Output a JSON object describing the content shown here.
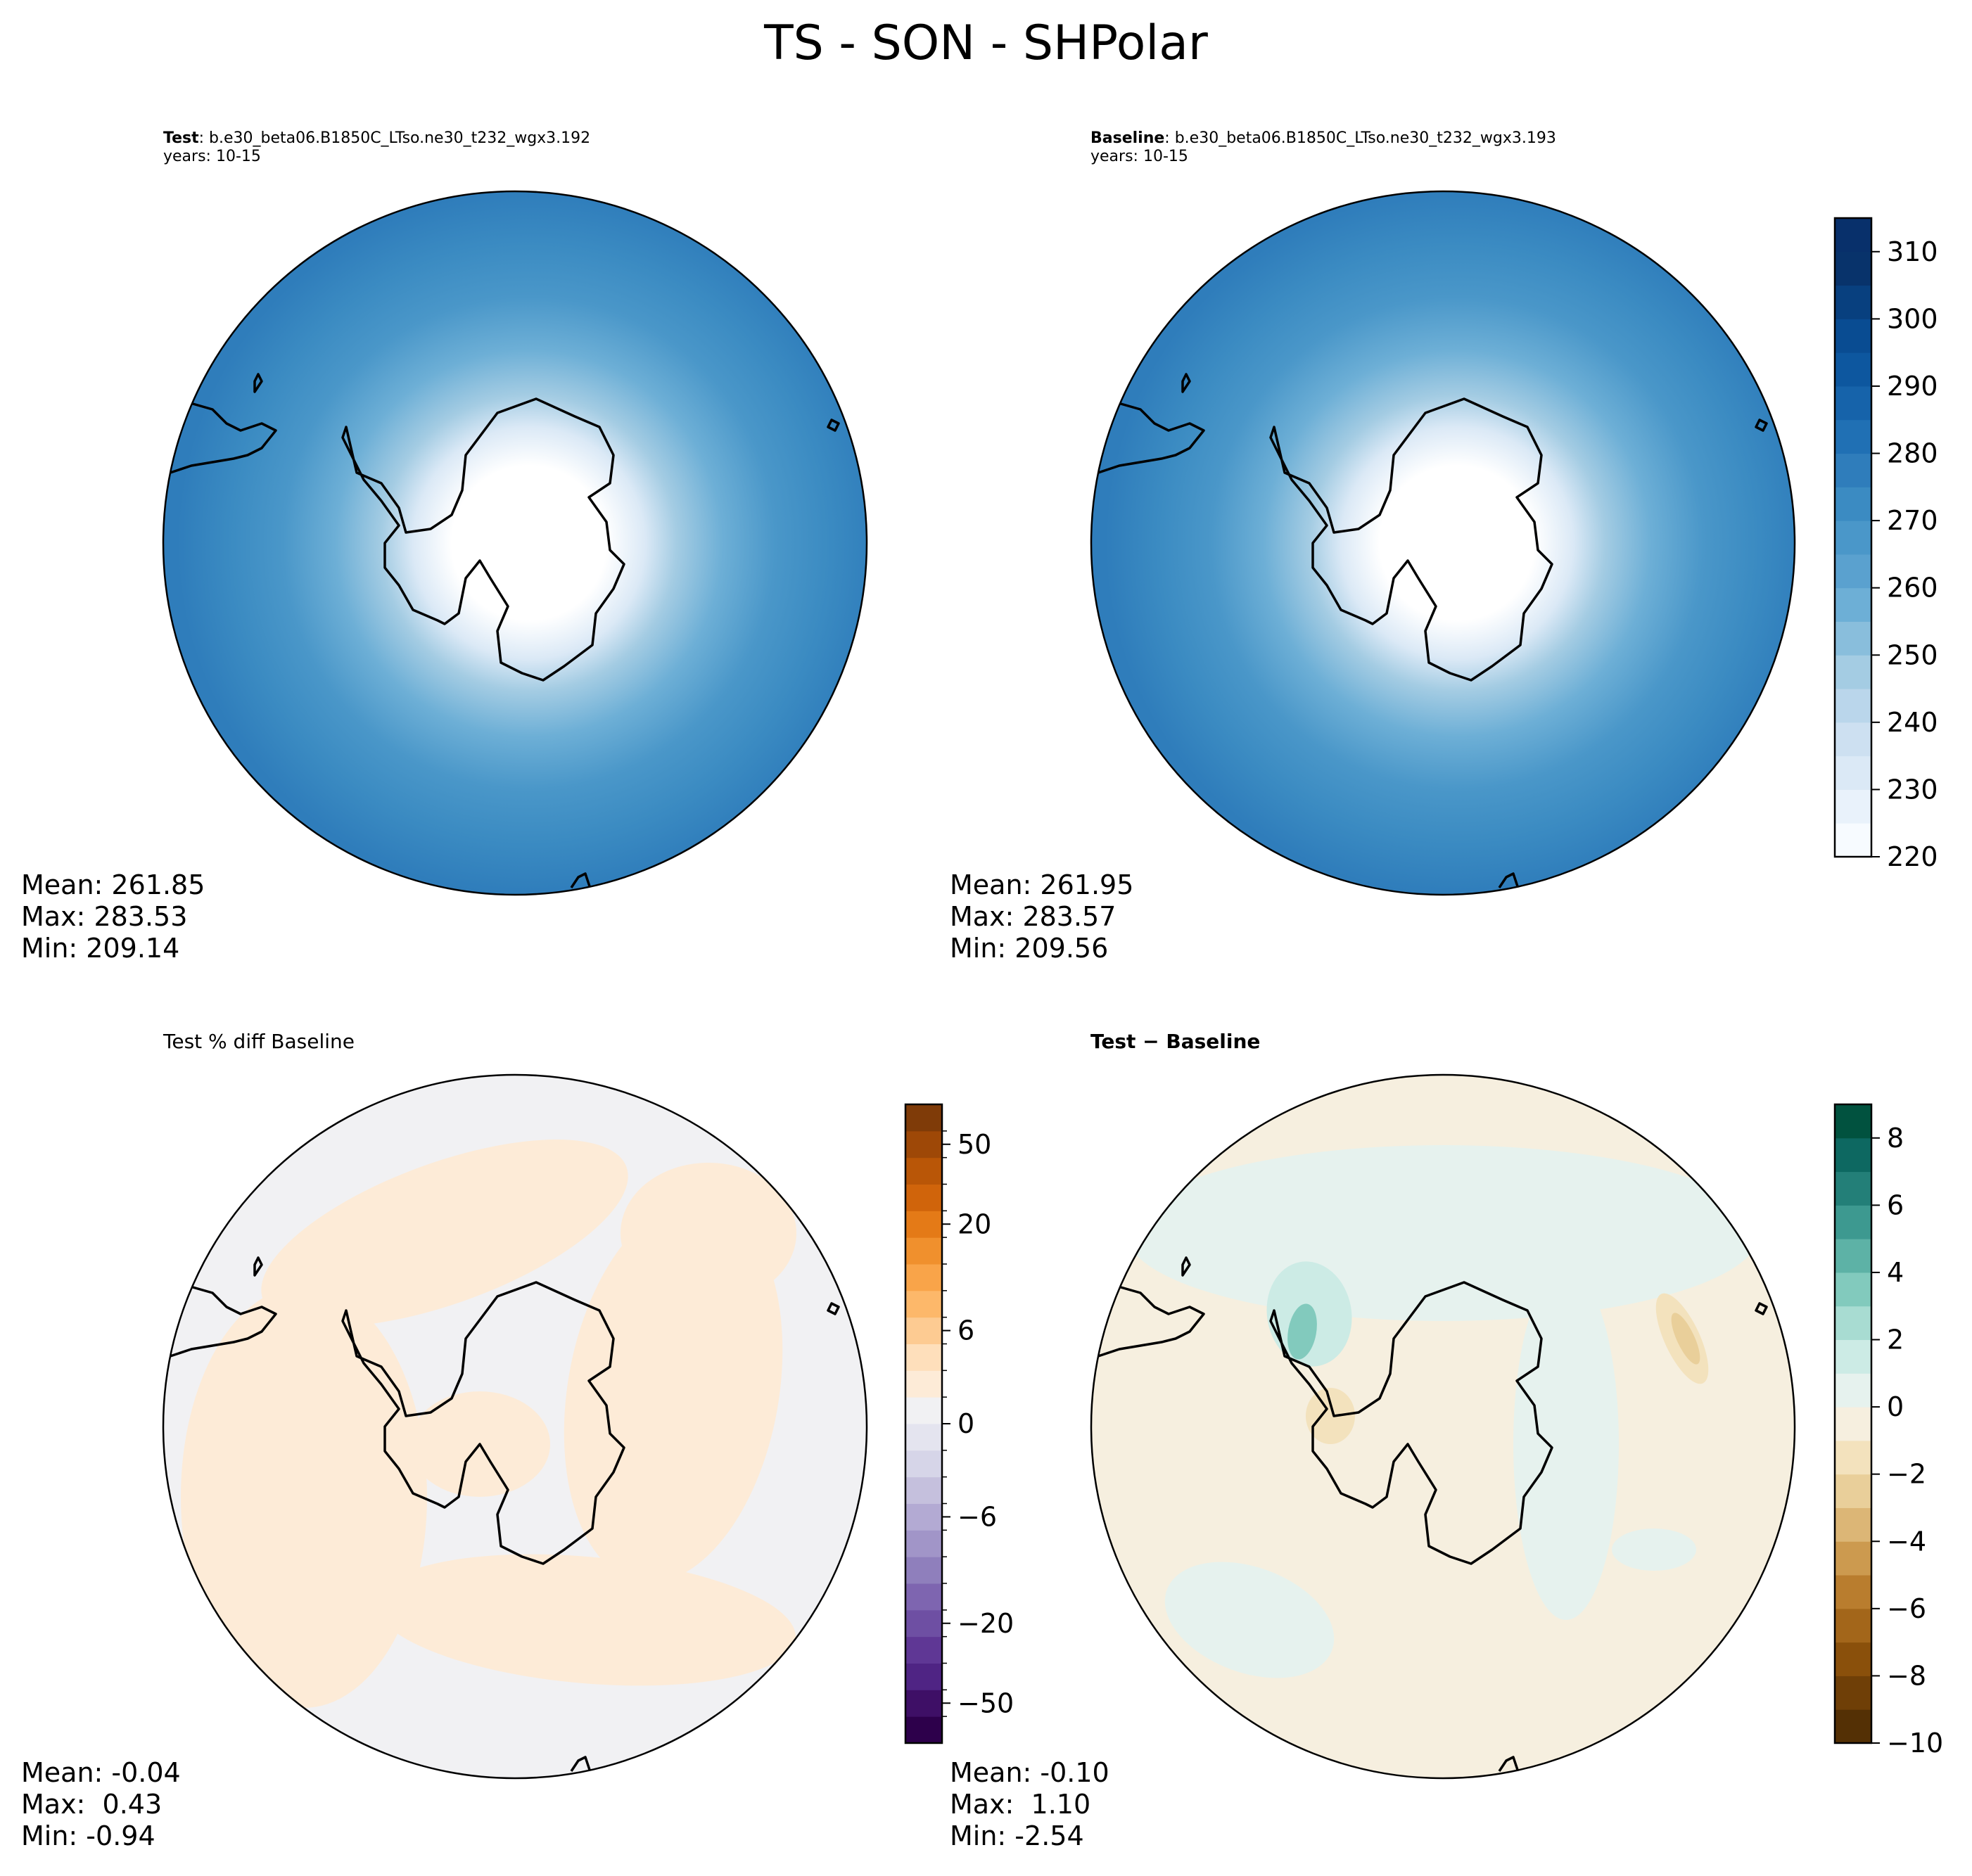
{
  "figure_title": "TS - SON - SHPolar",
  "panels": {
    "test": {
      "label": "Test",
      "case": ": b.e30_beta06.B1850C_LTso.ne30_t232_wgx3.192",
      "years": "years: 10-15",
      "mean": "Mean: 261.85",
      "max": "Max: 283.53",
      "min": "Min: 209.14"
    },
    "baseline": {
      "label": "Baseline",
      "case": ": b.e30_beta06.B1850C_LTso.ne30_t232_wgx3.193",
      "years": "years: 10-15",
      "mean": "Mean: 261.95",
      "max": "Max: 283.57",
      "min": "Min: 209.56"
    },
    "pct_diff": {
      "title": "Test % diff Baseline",
      "mean": "Mean: -0.04",
      "max": "Max:  0.43",
      "min": "Min: -0.94"
    },
    "diff": {
      "title": "Test − Baseline",
      "mean": "Mean: -0.10",
      "max": "Max:  1.10",
      "min": "Min: -2.54"
    }
  },
  "chart_data": [
    {
      "type": "heatmap",
      "panel": "Test",
      "projection": "south-polar-stereographic",
      "variable": "TS",
      "season": "SON",
      "stats": {
        "mean": 261.85,
        "max": 283.53,
        "min": 209.14
      }
    },
    {
      "type": "heatmap",
      "panel": "Baseline",
      "projection": "south-polar-stereographic",
      "variable": "TS",
      "season": "SON",
      "stats": {
        "mean": 261.95,
        "max": 283.57,
        "min": 209.56
      },
      "colorbar": {
        "levels": [
          220,
          225,
          230,
          235,
          240,
          245,
          250,
          255,
          260,
          265,
          270,
          275,
          280,
          285,
          290,
          295,
          300,
          305,
          310,
          315
        ],
        "ticks": [
          220,
          230,
          240,
          250,
          260,
          270,
          280,
          290,
          300,
          310
        ],
        "colors": [
          "#f7fbff",
          "#e9f2fb",
          "#dbe9f6",
          "#cde0f1",
          "#bad6eb",
          "#a4cce3",
          "#89bedc",
          "#6dafd6",
          "#5aa1cf",
          "#4a97c9",
          "#3b8bc2",
          "#2f7dbb",
          "#2070b4",
          "#1663aa",
          "#0d579f",
          "#094c92",
          "#08407f",
          "#08336b",
          "#08306b"
        ]
      }
    },
    {
      "type": "heatmap",
      "panel": "Test % diff Baseline",
      "projection": "south-polar-stereographic",
      "stats": {
        "mean": -0.04,
        "max": 0.43,
        "min": -0.94
      },
      "colorbar": {
        "ticks": [
          -50,
          -20,
          -6,
          0,
          6,
          20,
          50
        ],
        "n_bands": 24,
        "colors": [
          "#2d004b",
          "#3e0f66",
          "#4f2484",
          "#5f3795",
          "#6e4fa3",
          "#7e65b0",
          "#8f7fbc",
          "#a195c8",
          "#b3aad3",
          "#c5c0dd",
          "#d6d5e8",
          "#e4e4ef",
          "#f1f1f3",
          "#fdebd7",
          "#fedfbb",
          "#fdcb92",
          "#fdb86a",
          "#f9a449",
          "#f0902d",
          "#e47a17",
          "#d0640b",
          "#b95607",
          "#9e4807",
          "#7f3b08"
        ]
      }
    },
    {
      "type": "heatmap",
      "panel": "Test − Baseline",
      "projection": "south-polar-stereographic",
      "stats": {
        "mean": -0.1,
        "max": 1.1,
        "min": -2.54
      },
      "colorbar": {
        "levels": [
          -10,
          -9,
          -8,
          -7,
          -6,
          -5,
          -4,
          -3,
          -2,
          -1,
          0,
          1,
          2,
          3,
          4,
          5,
          6,
          7,
          8,
          9
        ],
        "ticks": [
          -10,
          -8,
          -6,
          -4,
          -2,
          0,
          2,
          4,
          6,
          8
        ],
        "colors": [
          "#543005",
          "#6f3f07",
          "#8a500b",
          "#a3661a",
          "#b97d2e",
          "#cc9a4f",
          "#dcb676",
          "#e9cf9a",
          "#f3e2bd",
          "#f6efdf",
          "#e6f2ee",
          "#ccebe5",
          "#a8dcd2",
          "#82cabd",
          "#5db2a6",
          "#3d9990",
          "#237f78",
          "#0d6861",
          "#01523f"
        ]
      }
    }
  ]
}
